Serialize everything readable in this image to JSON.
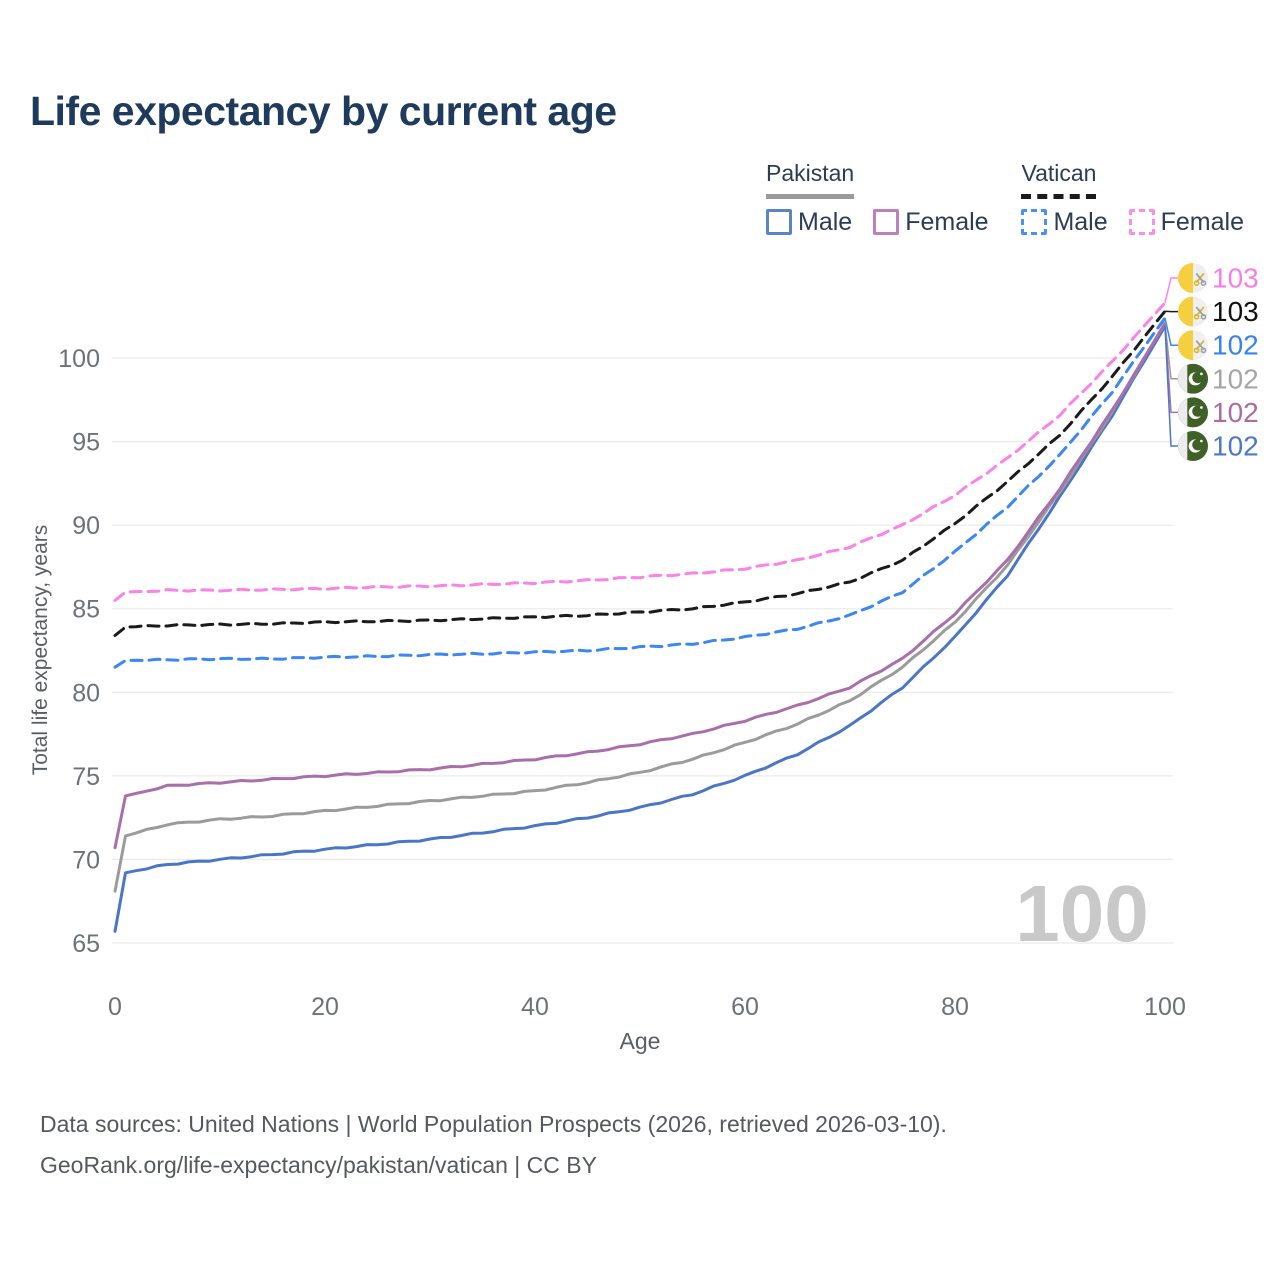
{
  "title": "Life expectancy by current age",
  "legend": {
    "groups": [
      {
        "name": "Pakistan",
        "line_style": "solid",
        "underline_color": "#9a9a9a",
        "items": [
          {
            "label": "Male",
            "color": "#5b83c6",
            "dashed": false
          },
          {
            "label": "Female",
            "color": "#bd80ba",
            "dashed": false
          }
        ]
      },
      {
        "name": "Vatican",
        "line_style": "dashed",
        "underline_color": "#1b1b1b",
        "items": [
          {
            "label": "Male",
            "color": "#4a90f4",
            "dashed": true
          },
          {
            "label": "Female",
            "color": "#fb8cec",
            "dashed": true
          }
        ]
      }
    ]
  },
  "chart_data": {
    "type": "line",
    "title": "Life expectancy by current age",
    "xlabel": "Age",
    "ylabel": "Total life expectancy, years",
    "xlim": [
      0,
      100
    ],
    "ylim": [
      65,
      100
    ],
    "x_ticks": [
      0,
      20,
      40,
      60,
      80,
      100
    ],
    "y_ticks": [
      65,
      70,
      75,
      80,
      85,
      90,
      95,
      100
    ],
    "grid": "horizontal",
    "grid_color": "#ebebeb",
    "hover_age_watermark": "100",
    "watermark_color": "#c9c9c9",
    "ages": [
      0,
      1,
      5,
      10,
      15,
      20,
      25,
      30,
      35,
      40,
      45,
      50,
      55,
      60,
      65,
      70,
      75,
      80,
      85,
      90,
      95,
      100
    ],
    "series": [
      {
        "name": "Pakistan Male",
        "color": "#4b76c5",
        "dashed": false,
        "flag": "pakistan",
        "end_label": "102",
        "label_color": "#4b79c8",
        "values": [
          65.7,
          69.2,
          69.7,
          70.0,
          70.3,
          70.6,
          70.9,
          71.2,
          71.6,
          72.0,
          72.5,
          73.1,
          73.9,
          75.0,
          76.3,
          78.0,
          80.3,
          83.3,
          87.0,
          91.7,
          96.6,
          101.9
        ]
      },
      {
        "name": "Pakistan Overall",
        "color": "#9b9b9b",
        "dashed": false,
        "flag": "pakistan",
        "end_label": "102",
        "label_color": "#a6a6a6",
        "values": [
          68.1,
          71.4,
          72.1,
          72.4,
          72.6,
          72.9,
          73.2,
          73.5,
          73.8,
          74.1,
          74.6,
          75.2,
          76.0,
          77.0,
          78.1,
          79.5,
          81.5,
          84.2,
          87.6,
          92.0,
          96.8,
          102.1
        ]
      },
      {
        "name": "Pakistan Female",
        "color": "#a96fab",
        "dashed": false,
        "flag": "pakistan",
        "end_label": "102",
        "label_color": "#ab6ba4",
        "values": [
          70.7,
          73.8,
          74.4,
          74.6,
          74.8,
          75.0,
          75.2,
          75.4,
          75.7,
          76.0,
          76.4,
          76.9,
          77.5,
          78.3,
          79.2,
          80.3,
          82.0,
          84.7,
          87.9,
          92.2,
          96.9,
          102.05
        ]
      },
      {
        "name": "Vatican Male",
        "color": "#3c87f0",
        "dashed": true,
        "flag": "vatican",
        "end_label": "102",
        "label_color": "#3b82f0",
        "values": [
          81.5,
          81.9,
          81.95,
          82.0,
          82.0,
          82.1,
          82.15,
          82.25,
          82.3,
          82.4,
          82.5,
          82.7,
          82.9,
          83.3,
          83.8,
          84.6,
          86.0,
          88.4,
          91.1,
          94.2,
          98.0,
          102.4
        ]
      },
      {
        "name": "Vatican Overall",
        "color": "#1b1b1b",
        "dashed": true,
        "flag": "vatican",
        "end_label": "103",
        "label_color": "#111111",
        "values": [
          83.4,
          83.9,
          84.0,
          84.05,
          84.1,
          84.2,
          84.25,
          84.3,
          84.4,
          84.5,
          84.6,
          84.8,
          85.0,
          85.4,
          85.9,
          86.6,
          87.9,
          90.1,
          92.6,
          95.4,
          98.9,
          102.8
        ]
      },
      {
        "name": "Vatican Female",
        "color": "#f983e7",
        "dashed": true,
        "flag": "vatican",
        "end_label": "103",
        "label_color": "#f77fe3",
        "values": [
          85.5,
          86.0,
          86.1,
          86.1,
          86.15,
          86.2,
          86.3,
          86.35,
          86.45,
          86.55,
          86.7,
          86.9,
          87.1,
          87.4,
          87.9,
          88.7,
          90.0,
          91.8,
          94.0,
          96.6,
          99.8,
          103.3
        ]
      }
    ]
  },
  "flags": {
    "pakistan": {
      "band_color": "#ececec",
      "green": "#3f6128",
      "emblem": "#f7f7f7"
    },
    "vatican": {
      "yellow": "#f6cf3f",
      "white": "#efefef",
      "key_gold": "#ddb42c",
      "key_silver": "#9aa0a6"
    }
  },
  "footer": {
    "line1": "Data sources: United Nations | World Population Prospects (2026, retrieved 2026-03-10).",
    "line2": "GeoRank.org/life-expectancy/pakistan/vatican | CC BY"
  }
}
